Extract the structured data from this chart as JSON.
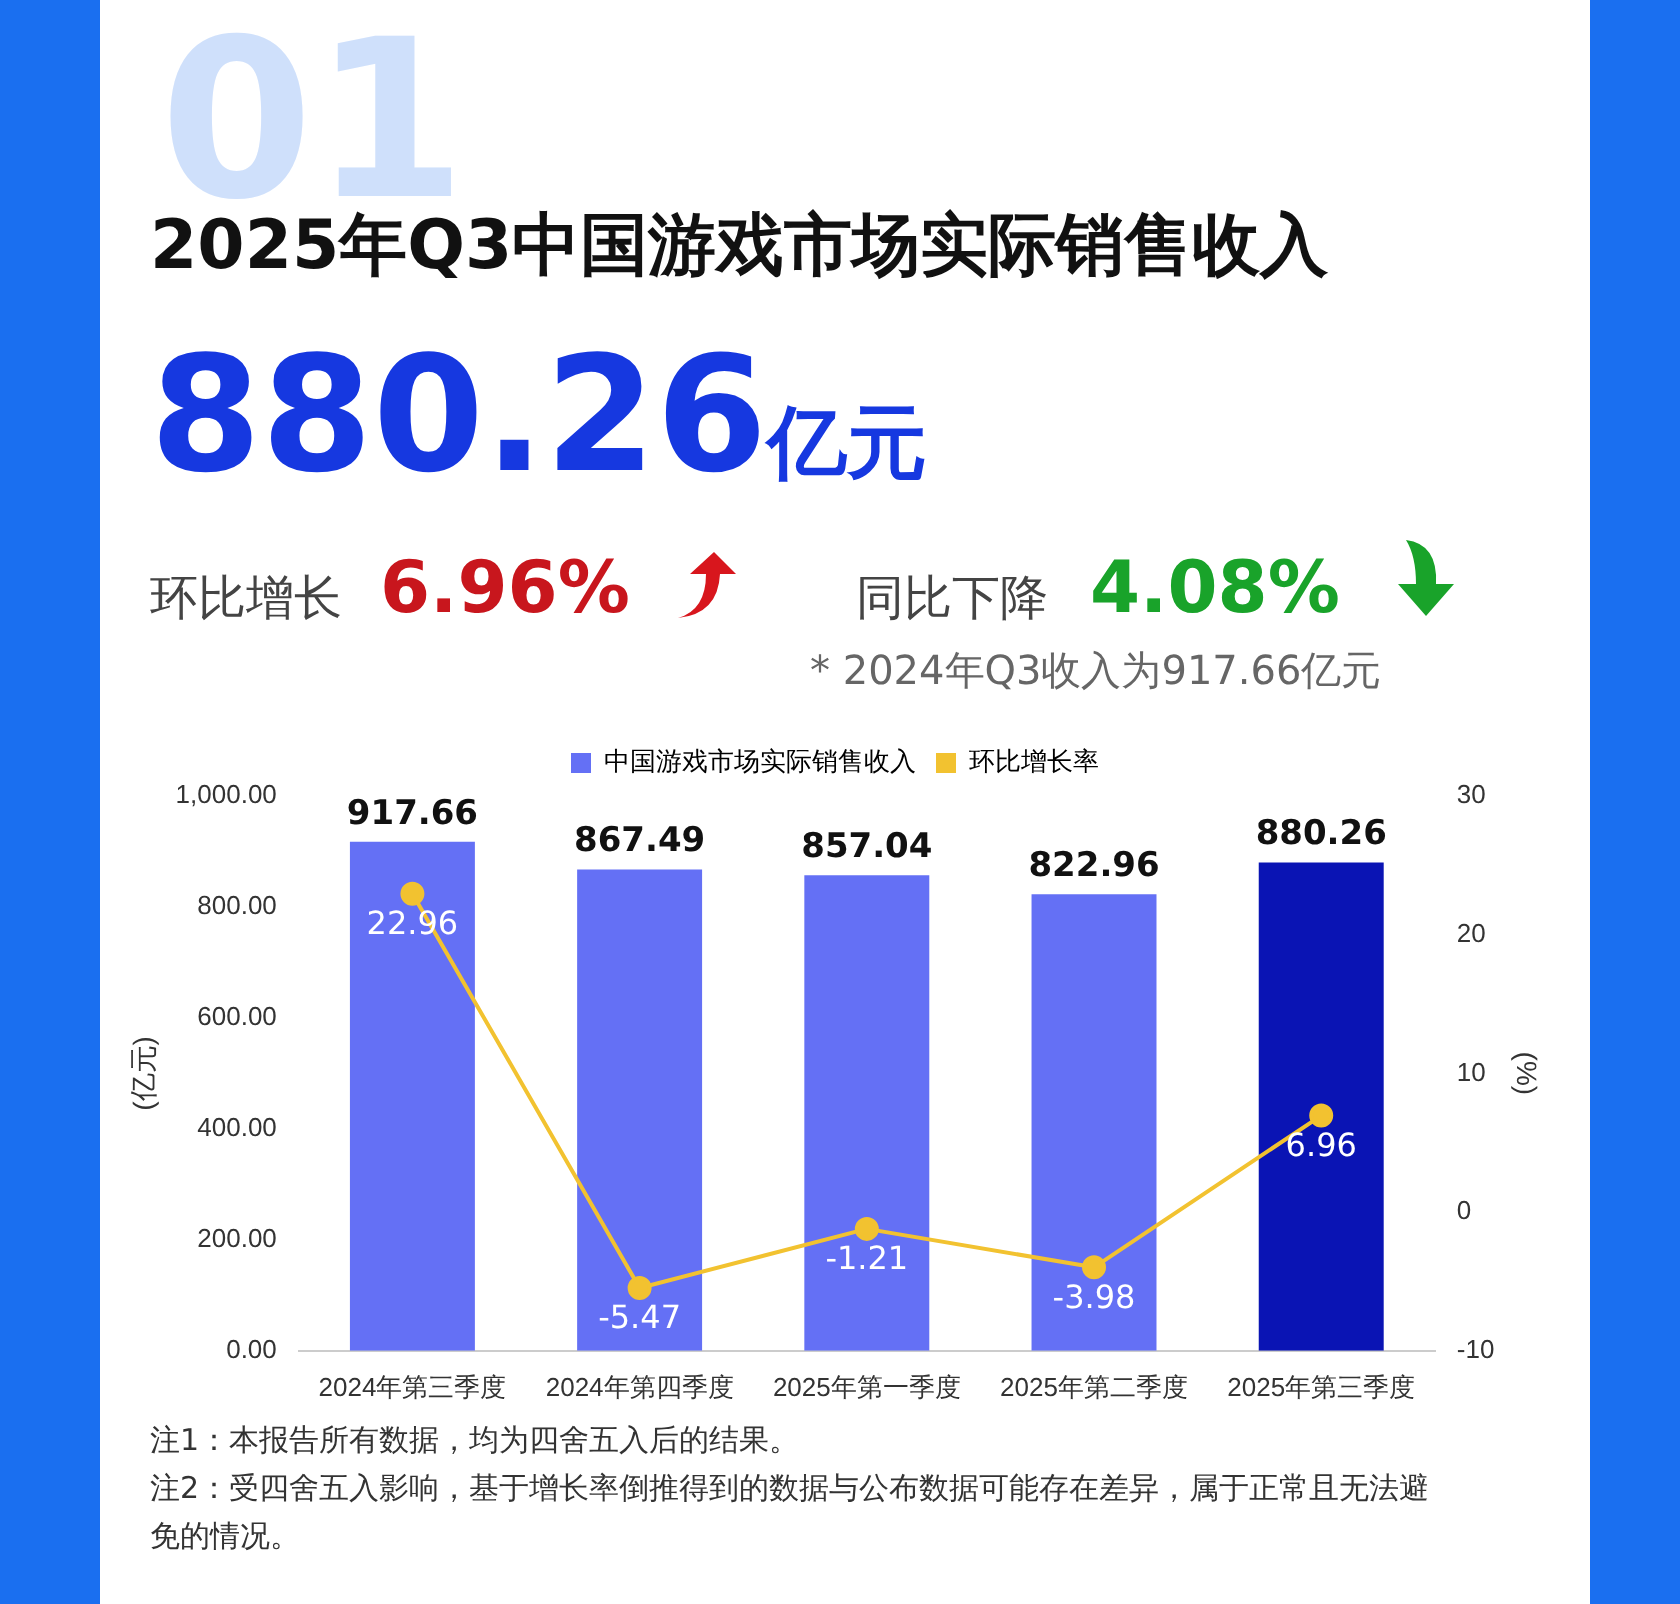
{
  "chart_data": {
    "type": "bar",
    "title": "2025年Q3中国游戏市场实际销售收入",
    "subtitle": "880.26亿元",
    "ylabel": "(亿元)",
    "y2label": "(%)",
    "annotations": [
      "01",
      "环比增长",
      "6.96%",
      "同比下降",
      "4.08%",
      "* 2024年Q3收入为917.66亿元",
      "注1：本报告所有数据，均为四舍五入后的结果。",
      "注2：受四舍五入影响，基于增长率倒推得到的数据与公布数据可能存在差异，属于正常且无法避免的情况。"
    ],
    "categories": [
      "2024年第三季度",
      "2024年第四季度",
      "2025年第一季度",
      "2025年第二季度",
      "2025年第三季度"
    ],
    "series": [
      {
        "name": "中国游戏市场实际销售收入",
        "color": "#6470f5",
        "colors": [
          "#6470f5",
          "#6470f5",
          "#6470f5",
          "#6470f5",
          "#0a14b4"
        ],
        "values": [
          917.66,
          867.49,
          857.04,
          822.96,
          880.26
        ]
      },
      {
        "name": "环比增长率",
        "type": "line",
        "axis": "y2",
        "color": "#f2c230",
        "values": [
          22.96,
          -5.47,
          -1.21,
          -3.98,
          6.96
        ]
      }
    ],
    "ylim": [
      0,
      1000
    ],
    "yticks": [
      {
        "value": 0,
        "label": "0.00"
      },
      {
        "value": 200,
        "label": "200.00"
      },
      {
        "value": 400,
        "label": "400.00"
      },
      {
        "value": 600,
        "label": "600.00"
      },
      {
        "value": 800,
        "label": "800.00"
      },
      {
        "value": 1000,
        "label": "1,000.00"
      }
    ],
    "y2lim": [
      -10,
      30
    ],
    "y2ticks": [
      -10,
      0,
      10,
      20,
      30
    ],
    "grid": false,
    "legend": "top",
    "marker": "circle",
    "line_style": "solid",
    "data_labels": true
  }
}
